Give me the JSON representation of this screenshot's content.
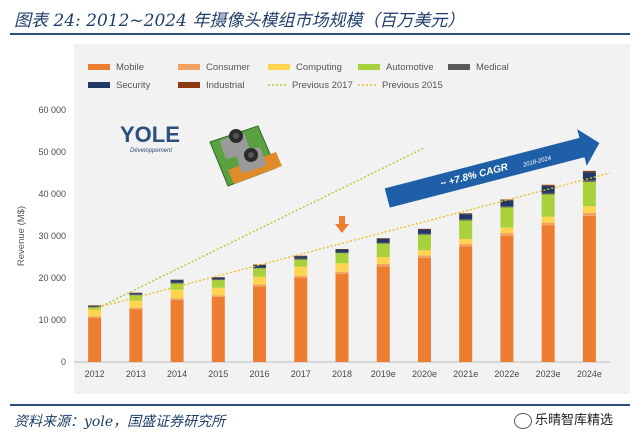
{
  "figure": {
    "title": "图表 24:  2012~2024 年摄像头模组市场规模（百万美元）",
    "source": "资料来源：yole，国盛证券研究所",
    "watermark": "乐晴智库精选"
  },
  "logo": {
    "name": "YOLE",
    "sub": "Développement"
  },
  "annotation": {
    "cagr_text": "~ +7.8% CAGR",
    "cagr_sub": "2018-2024"
  },
  "colors": {
    "Mobile": "#ed7d31",
    "Consumer": "#f4a261",
    "Computing": "#ffd54f",
    "Automotive": "#a9d13b",
    "Medical": "#595959",
    "Security": "#1f3864",
    "Industrial": "#8b3a0f",
    "Previous 2017": "#b5c933",
    "Previous 2015": "#e6c229",
    "arrow": "#1f5fa8"
  },
  "chart_data": {
    "type": "bar",
    "stacked": true,
    "categories": [
      "2012",
      "2013",
      "2014",
      "2015",
      "2016",
      "2017",
      "2018",
      "2019e",
      "2020e",
      "2021e",
      "2022e",
      "2023e",
      "2024e"
    ],
    "series": [
      {
        "name": "Mobile",
        "values": [
          10500,
          12500,
          14800,
          15500,
          18000,
          20000,
          21000,
          22800,
          24800,
          27500,
          30000,
          32500,
          34800
        ]
      },
      {
        "name": "Consumer",
        "values": [
          400,
          400,
          400,
          400,
          500,
          500,
          500,
          600,
          600,
          600,
          700,
          700,
          700
        ]
      },
      {
        "name": "Computing",
        "values": [
          1600,
          1700,
          2000,
          1800,
          1800,
          2200,
          2000,
          1600,
          1200,
          1200,
          1300,
          1400,
          1600
        ]
      },
      {
        "name": "Automotive",
        "values": [
          500,
          1300,
          1500,
          1800,
          2000,
          1700,
          2400,
          3200,
          3700,
          4400,
          4800,
          5300,
          5800
        ]
      },
      {
        "name": "Medical",
        "values": [
          150,
          200,
          200,
          200,
          200,
          200,
          200,
          250,
          250,
          300,
          300,
          350,
          400
        ]
      },
      {
        "name": "Security",
        "values": [
          250,
          300,
          600,
          400,
          600,
          600,
          700,
          900,
          1000,
          1200,
          1400,
          1700,
          1900
        ]
      },
      {
        "name": "Industrial",
        "values": [
          100,
          100,
          100,
          100,
          100,
          100,
          100,
          150,
          150,
          200,
          200,
          250,
          300
        ]
      }
    ],
    "lines": [
      {
        "name": "Previous 2017",
        "points": [
          [
            0,
            12500
          ],
          [
            8,
            51000
          ]
        ]
      },
      {
        "name": "Previous 2015",
        "points": [
          [
            0,
            12800
          ],
          [
            13,
            45000
          ]
        ]
      }
    ],
    "marker_arrow_category": "2018",
    "cagr_arrow": {
      "from_category": "2019e",
      "to_category": "2024e"
    },
    "xlabel": "",
    "ylabel": "Revenue (M$)",
    "ylim": [
      0,
      60000
    ],
    "yticks": [
      0,
      10000,
      20000,
      30000,
      40000,
      50000,
      60000
    ],
    "ytick_labels": [
      "0",
      "10 000",
      "20 000",
      "30 000",
      "40 000",
      "50 000",
      "60 000"
    ],
    "legend": {
      "placement": "top",
      "entries": [
        "Mobile",
        "Consumer",
        "Computing",
        "Automotive",
        "Medical",
        "Security",
        "Industrial",
        "Previous 2017",
        "Previous 2015"
      ]
    },
    "grid": false
  }
}
